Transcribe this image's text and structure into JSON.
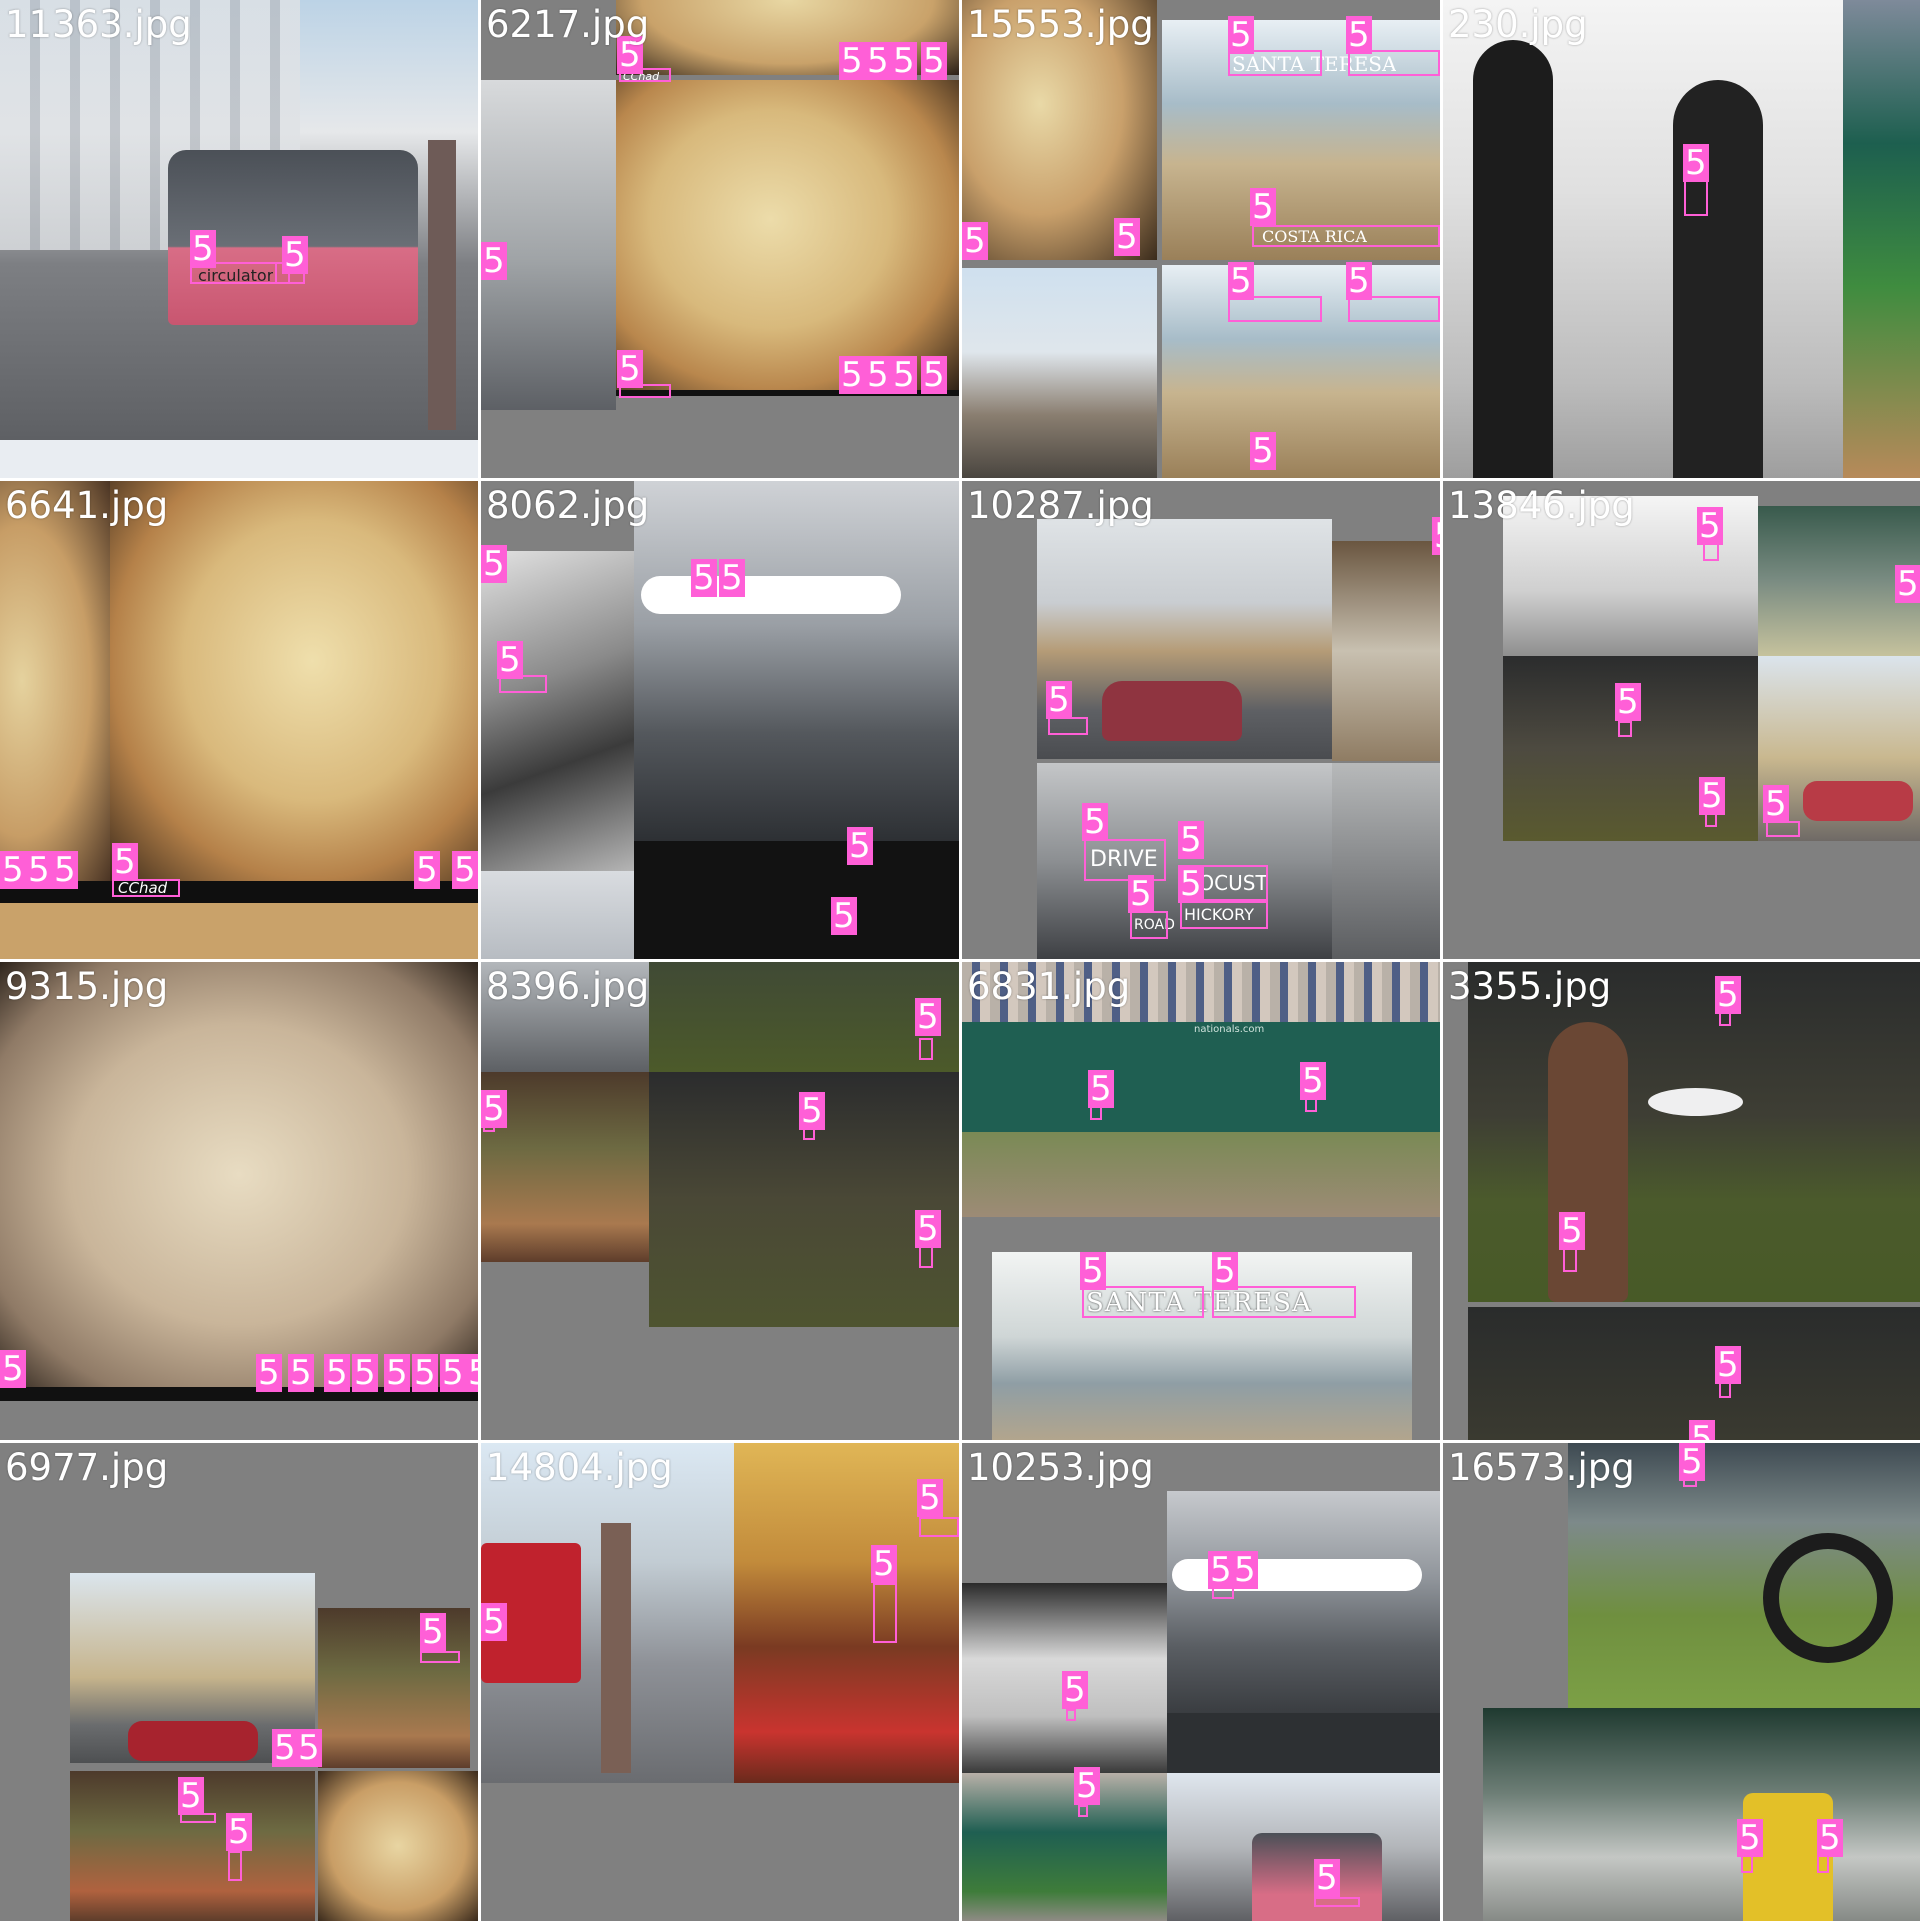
{
  "grid": {
    "rows": 4,
    "cols": 4,
    "label_color": "#ff5fd7",
    "background_color": "#808080",
    "tiles": [
      {
        "filename": "11363.jpg",
        "class_label": "5"
      },
      {
        "filename": "6217.jpg",
        "class_label": "5"
      },
      {
        "filename": "15553.jpg",
        "class_label": "5"
      },
      {
        "filename": "230.jpg",
        "class_label": "5"
      },
      {
        "filename": "6641.jpg",
        "class_label": "5"
      },
      {
        "filename": "8062.jpg",
        "class_label": "5"
      },
      {
        "filename": "10287.jpg",
        "class_label": "5"
      },
      {
        "filename": "13846.jpg",
        "class_label": "5"
      },
      {
        "filename": "9315.jpg",
        "class_label": "5"
      },
      {
        "filename": "8396.jpg",
        "class_label": "5"
      },
      {
        "filename": "6831.jpg",
        "class_label": "5"
      },
      {
        "filename": "3355.jpg",
        "class_label": "5"
      },
      {
        "filename": "6977.jpg",
        "class_label": "5"
      },
      {
        "filename": "14804.jpg",
        "class_label": "5"
      },
      {
        "filename": "10253.jpg",
        "class_label": "5"
      },
      {
        "filename": "16573.jpg",
        "class_label": "5"
      }
    ]
  },
  "scene_text": {
    "bus_sign": "circulator",
    "beach_sign_1": "SANTA TERESA",
    "beach_sign_2": "COSTA RICA",
    "pizza_signature": "CChad",
    "street_sign_1": "DRIVE",
    "street_sign_2": "LOCUST",
    "street_sign_3": "HICKORY",
    "street_sign_4": "ROAD",
    "stadium_sign": "nationals.com"
  }
}
